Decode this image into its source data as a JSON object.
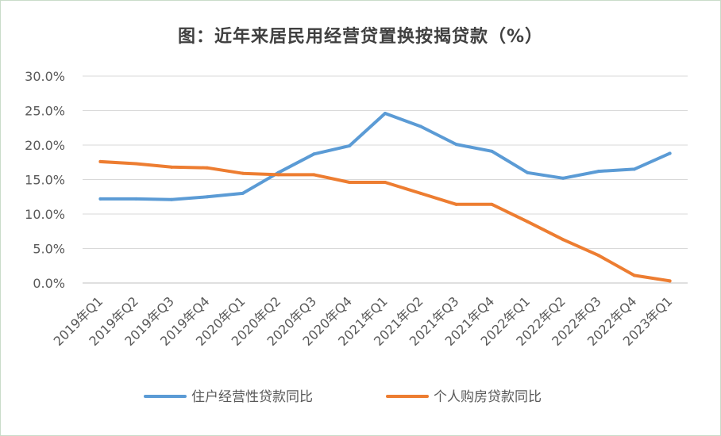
{
  "title": "图：近年来居民用经营贷置换按揭贷款（%）",
  "chart_data": {
    "type": "line",
    "title": "图：近年来居民用经营贷置换按揭贷款（%）",
    "categories": [
      "2019年Q1",
      "2019年Q2",
      "2019年Q3",
      "2019年Q4",
      "2020年Q1",
      "2020年Q2",
      "2020年Q3",
      "2020年Q4",
      "2021年Q1",
      "2021年Q2",
      "2021年Q3",
      "2021年Q4",
      "2022年Q1",
      "2022年Q2",
      "2022年Q3",
      "2022年Q4",
      "2023年Q1"
    ],
    "y_ticks": [
      "0.0%",
      "5.0%",
      "10.0%",
      "15.0%",
      "20.0%",
      "25.0%",
      "30.0%"
    ],
    "ylim": [
      0,
      30
    ],
    "grid": true,
    "legend_position": "bottom",
    "series": [
      {
        "name": "住户经营性贷款同比",
        "color": "#5b9bd5",
        "values": [
          12.2,
          12.2,
          12.1,
          12.5,
          13.0,
          16.0,
          18.7,
          19.9,
          24.6,
          22.7,
          20.1,
          19.1,
          16.0,
          15.2,
          16.2,
          16.5,
          18.8
        ]
      },
      {
        "name": "个人购房贷款同比",
        "color": "#ed7d31",
        "values": [
          17.6,
          17.3,
          16.8,
          16.7,
          15.9,
          15.7,
          15.7,
          14.6,
          14.6,
          13.0,
          11.4,
          11.4,
          8.9,
          6.3,
          4.0,
          1.1,
          0.3
        ]
      }
    ]
  }
}
